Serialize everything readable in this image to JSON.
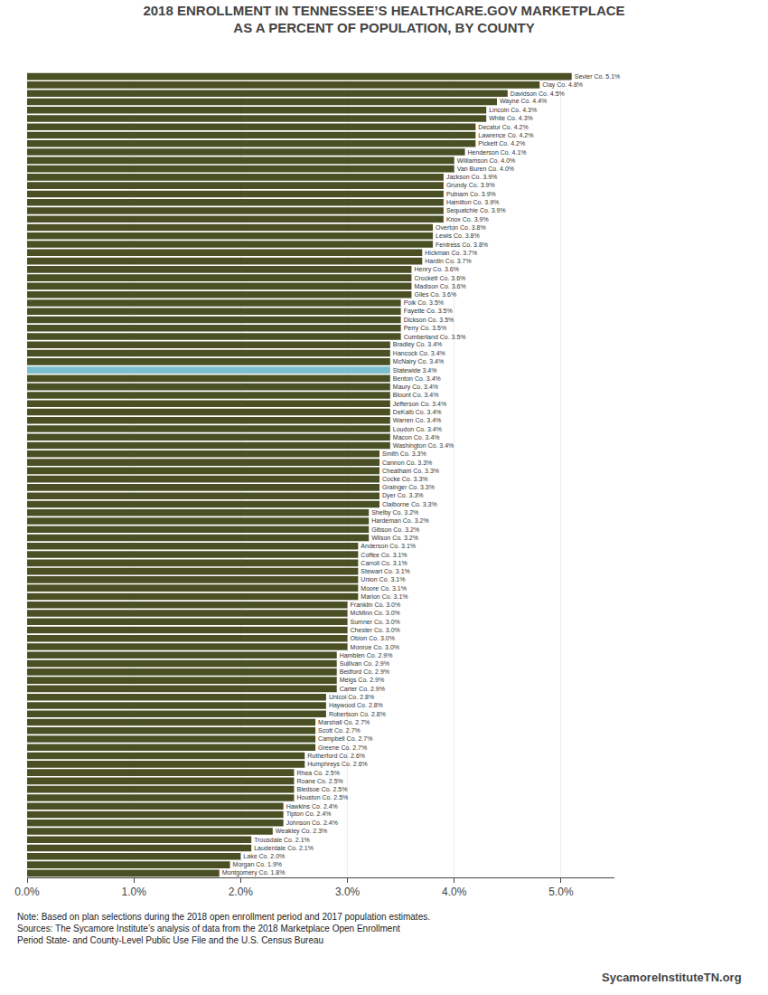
{
  "chart_data": {
    "type": "bar",
    "orientation": "horizontal",
    "title": "2018 ENROLLMENT IN TENNESSEE’S HEALTHCARE.GOV MARKETPLACE\nAS A PERCENT OF POPULATION, BY COUNTY",
    "categories": [
      "Sevier Co.",
      "Clay Co.",
      "Davidson Co.",
      "Wayne Co.",
      "Lincoln Co.",
      "White Co.",
      "Decatur Co.",
      "Lawrence Co.",
      "Pickett Co.",
      "Henderson Co.",
      "Williamson Co.",
      "Van Buren Co.",
      "Jackson Co.",
      "Grundy Co.",
      "Putnam Co.",
      "Hamilton Co.",
      "Sequatchie Co.",
      "Knox Co.",
      "Overton Co.",
      "Lewis Co.",
      "Fentress Co.",
      "Hickman Co.",
      "Hardin Co.",
      "Henry Co.",
      "Crockett Co.",
      "Madison Co.",
      "Giles Co.",
      "Polk Co.",
      "Fayette Co.",
      "Dickson Co.",
      "Perry Co.",
      "Cumberland Co.",
      "Bradley Co.",
      "Hancock Co.",
      "McNairy Co.",
      "Statewide",
      "Benton Co.",
      "Maury Co.",
      "Blount Co.",
      "Jefferson Co.",
      "DeKalb Co.",
      "Warren Co.",
      "Loudon Co.",
      "Macon Co.",
      "Washington Co.",
      "Smith Co.",
      "Cannon Co.",
      "Cheatham Co.",
      "Cocke Co.",
      "Grainger Co.",
      "Dyer Co.",
      "Claiborne Co.",
      "Shelby Co.",
      "Hardeman Co.",
      "Gibson Co.",
      "Wilson Co.",
      "Anderson Co.",
      "Coffee Co.",
      "Carroll Co.",
      "Stewart Co.",
      "Union Co.",
      "Moore Co.",
      "Marion Co.",
      "Franklin Co.",
      "McMinn Co.",
      "Sumner Co.",
      "Chester Co.",
      "Obion Co.",
      "Monroe Co.",
      "Hamblen Co.",
      "Sullivan Co.",
      "Bedford Co.",
      "Meigs Co.",
      "Carter Co.",
      "Unicoi Co.",
      "Haywood Co.",
      "Robertson Co.",
      "Marshall Co.",
      "Scott Co.",
      "Campbell Co.",
      "Greene Co.",
      "Rutherford Co.",
      "Humphreys Co.",
      "Rhea Co.",
      "Roane Co.",
      "Bledsoe Co.",
      "Houston Co.",
      "Hawkins Co.",
      "Tipton Co.",
      "Johnson Co.",
      "Weakley Co.",
      "Trousdale Co.",
      "Lauderdale Co.",
      "Lake Co.",
      "Morgan Co.",
      "Montgomery Co."
    ],
    "values": [
      5.1,
      4.8,
      4.5,
      4.4,
      4.3,
      4.3,
      4.2,
      4.2,
      4.2,
      4.1,
      4.0,
      4.0,
      3.9,
      3.9,
      3.9,
      3.9,
      3.9,
      3.9,
      3.8,
      3.8,
      3.8,
      3.7,
      3.7,
      3.6,
      3.6,
      3.6,
      3.6,
      3.5,
      3.5,
      3.5,
      3.5,
      3.5,
      3.4,
      3.4,
      3.4,
      3.4,
      3.4,
      3.4,
      3.4,
      3.4,
      3.4,
      3.4,
      3.4,
      3.4,
      3.4,
      3.3,
      3.3,
      3.3,
      3.3,
      3.3,
      3.3,
      3.3,
      3.2,
      3.2,
      3.2,
      3.2,
      3.1,
      3.1,
      3.1,
      3.1,
      3.1,
      3.1,
      3.1,
      3.0,
      3.0,
      3.0,
      3.0,
      3.0,
      3.0,
      2.9,
      2.9,
      2.9,
      2.9,
      2.9,
      2.8,
      2.8,
      2.8,
      2.7,
      2.7,
      2.7,
      2.7,
      2.6,
      2.6,
      2.5,
      2.5,
      2.5,
      2.5,
      2.4,
      2.4,
      2.4,
      2.3,
      2.1,
      2.1,
      2.0,
      1.9,
      1.8
    ],
    "data_labels": true,
    "value_labels": [
      "Sevier Co. 5.1%",
      "Clay Co. 4.8%",
      "Davidson Co. 4.5%",
      "Wayne Co. 4.4%",
      "Lincoln Co. 4.3%",
      "White Co. 4.3%",
      "Decatur Co. 4.2%",
      "Lawrence Co. 4.2%",
      "Pickett Co. 4.2%",
      "Henderson Co. 4.1%",
      "Williamson Co. 4.0%",
      "Van Buren Co. 4.0%",
      "Jackson Co. 3.9%",
      "Grundy Co. 3.9%",
      "Putnam Co. 3.9%",
      "Hamilton Co. 3.9%",
      "Sequatchie Co. 3.9%",
      "Knox Co. 3.9%",
      "Overton Co. 3.8%",
      "Lewis Co. 3.8%",
      "Fentress Co. 3.8%",
      "Hickman Co. 3.7%",
      "Hardin Co. 3.7%",
      "Henry Co. 3.6%",
      "Crockett Co. 3.6%",
      "Madison Co. 3.6%",
      "Giles Co. 3.6%",
      "Polk Co. 3.5%",
      "Fayette Co. 3.5%",
      "Dickson Co. 3.5%",
      "Perry Co. 3.5%",
      "Cumberland Co. 3.5%",
      "Bradley Co. 3.4%",
      "Hancock Co. 3.4%",
      "McNairy Co. 3.4%",
      "Statewide 3.4%",
      "Benton Co. 3.4%",
      "Maury Co. 3.4%",
      "Blount Co. 3.4%",
      "Jefferson Co. 3.4%",
      "DeKalb Co. 3.4%",
      "Warren Co. 3.4%",
      "Loudon Co. 3.4%",
      "Macon Co. 3.4%",
      "Washington Co. 3.4%",
      "Smith Co. 3.3%",
      "Cannon Co. 3.3%",
      "Cheatham Co. 3.3%",
      "Cocke Co. 3.3%",
      "Grainger Co. 3.3%",
      "Dyer Co. 3.3%",
      "Claiborne Co. 3.3%",
      "Shelby Co. 3.2%",
      "Hardeman Co. 3.2%",
      "Gibson Co. 3.2%",
      "Wilson Co. 3.2%",
      "Anderson Co. 3.1%",
      "Coffee Co. 3.1%",
      "Carroll Co. 3.1%",
      "Stewart Co. 3.1%",
      "Union Co. 3.1%",
      "Moore Co. 3.1%",
      "Marion Co. 3.1%",
      "Franklin Co. 3.0%",
      "McMinn Co. 3.0%",
      "Sumner Co. 3.0%",
      "Chester Co. 3.0%",
      "Obion Co. 3.0%",
      "Monroe Co. 3.0%",
      "Hamblen Co. 2.9%",
      "Sullivan Co. 2.9%",
      "Bedford Co. 2.9%",
      "Meigs Co. 2.9%",
      "Carter Co. 2.9%",
      "Unicoi Co. 2.8%",
      "Haywood Co. 2.8%",
      "Robertson Co. 2.8%",
      "Marshall Co. 2.7%",
      "Scott Co. 2.7%",
      "Campbell Co. 2.7%",
      "Greene Co. 2.7%",
      "Rutherford Co. 2.6%",
      "Humphreys Co. 2.6%",
      "Rhea Co. 2.5%",
      "Roane Co. 2.5%",
      "Bledsoe Co. 2.5%",
      "Houston Co. 2.5%",
      "Hawkins Co. 2.4%",
      "Tipton Co. 2.4%",
      "Johnson Co. 2.4%",
      "Weakley Co. 2.3%",
      "Trousdale Co. 2.1%",
      "Lauderdale Co. 2.1%",
      "Lake Co. 2.0%",
      "Morgan Co. 1.9%",
      "Montgomery Co. 1.8%"
    ],
    "colors": [
      "#4A5024",
      "#4A5024",
      "#4A5024",
      "#4A5024",
      "#4A5024",
      "#4A5024",
      "#4A5024",
      "#4A5024",
      "#4A5024",
      "#4A5024",
      "#4A5024",
      "#4A5024",
      "#4A5024",
      "#4A5024",
      "#4A5024",
      "#4A5024",
      "#4A5024",
      "#4A5024",
      "#4A5024",
      "#4A5024",
      "#4A5024",
      "#4A5024",
      "#4A5024",
      "#4A5024",
      "#4A5024",
      "#4A5024",
      "#4A5024",
      "#4A5024",
      "#4A5024",
      "#4A5024",
      "#4A5024",
      "#4A5024",
      "#4A5024",
      "#4A5024",
      "#4A5024",
      "#7BBFCE",
      "#4A5024",
      "#4A5024",
      "#4A5024",
      "#4A5024",
      "#4A5024",
      "#4A5024",
      "#4A5024",
      "#4A5024",
      "#4A5024",
      "#4A5024",
      "#4A5024",
      "#4A5024",
      "#4A5024",
      "#4A5024",
      "#4A5024",
      "#4A5024",
      "#4A5024",
      "#4A5024",
      "#4A5024",
      "#4A5024",
      "#4A5024",
      "#4A5024",
      "#4A5024",
      "#4A5024",
      "#4A5024",
      "#4A5024",
      "#4A5024",
      "#4A5024",
      "#4A5024",
      "#4A5024",
      "#4A5024",
      "#4A5024",
      "#4A5024",
      "#4A5024",
      "#4A5024",
      "#4A5024",
      "#4A5024",
      "#4A5024",
      "#4A5024",
      "#4A5024",
      "#4A5024",
      "#4A5024",
      "#4A5024",
      "#4A5024",
      "#4A5024",
      "#4A5024",
      "#4A5024",
      "#4A5024",
      "#4A5024",
      "#4A5024",
      "#4A5024",
      "#4A5024",
      "#4A5024",
      "#4A5024",
      "#4A5024",
      "#4A5024",
      "#4A5024",
      "#4A5024",
      "#4A5024",
      "#4A5024"
    ],
    "xlim": [
      0,
      5.5
    ],
    "xticks": [
      {
        "value": 0.0,
        "label": "0.0%"
      },
      {
        "value": 1.0,
        "label": "1.0%"
      },
      {
        "value": 2.0,
        "label": "2.0%"
      },
      {
        "value": 3.0,
        "label": "3.0%"
      },
      {
        "value": 4.0,
        "label": "4.0%"
      },
      {
        "value": 5.0,
        "label": "5.0%"
      }
    ],
    "grid": true,
    "tick_labels": "x",
    "annotations": [
      "Note: Based on plan selections during the 2018 open enrollment period and 2017 population estimates.\nSources: The Sycamore Institute’s analysis of data from the 2018 Marketplace Open Enrollment\nPeriod State- and County-Level Public Use File and the U.S. Census Bureau",
      "SycamoreInstituteTN.org"
    ]
  }
}
